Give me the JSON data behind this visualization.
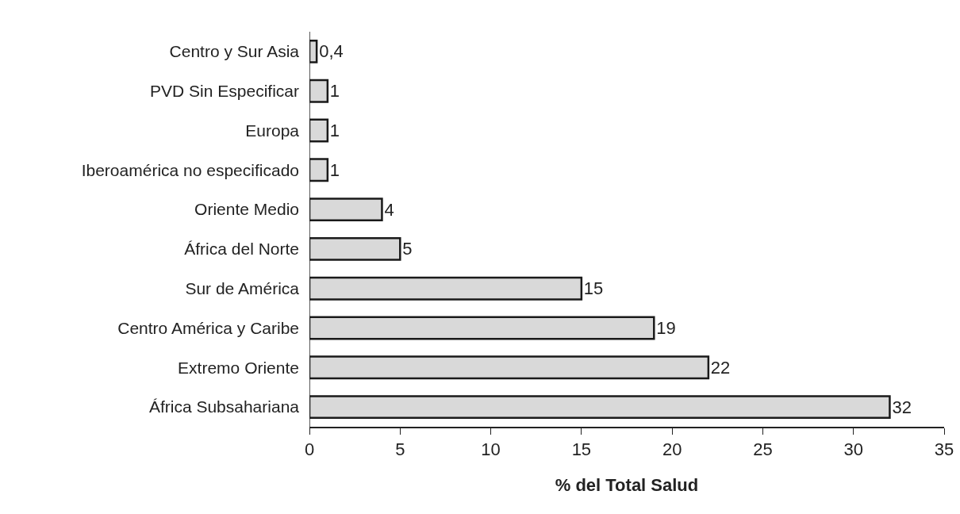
{
  "chart_data": {
    "type": "bar",
    "orientation": "horizontal",
    "xlabel": "% del Total Salud",
    "categories": [
      "Centro y Sur Asia",
      "PVD Sin Especificar",
      "Europa",
      "Iberoamérica no especificado",
      "Oriente Medio",
      "África del Norte",
      "Sur de América",
      "Centro América y Caribe",
      "Extremo Oriente",
      "África Subsahariana"
    ],
    "values": [
      0.4,
      1,
      1,
      1,
      4,
      5,
      15,
      19,
      22,
      32
    ],
    "value_labels": [
      "0,4",
      "1",
      "1",
      "1",
      "4",
      "5",
      "15",
      "19",
      "22",
      "32"
    ],
    "color": "#d9d9d9",
    "xlim": [
      0,
      35
    ],
    "xticks": [
      0,
      5,
      10,
      15,
      20,
      25,
      30,
      35
    ],
    "grid": false,
    "legend": false
  }
}
